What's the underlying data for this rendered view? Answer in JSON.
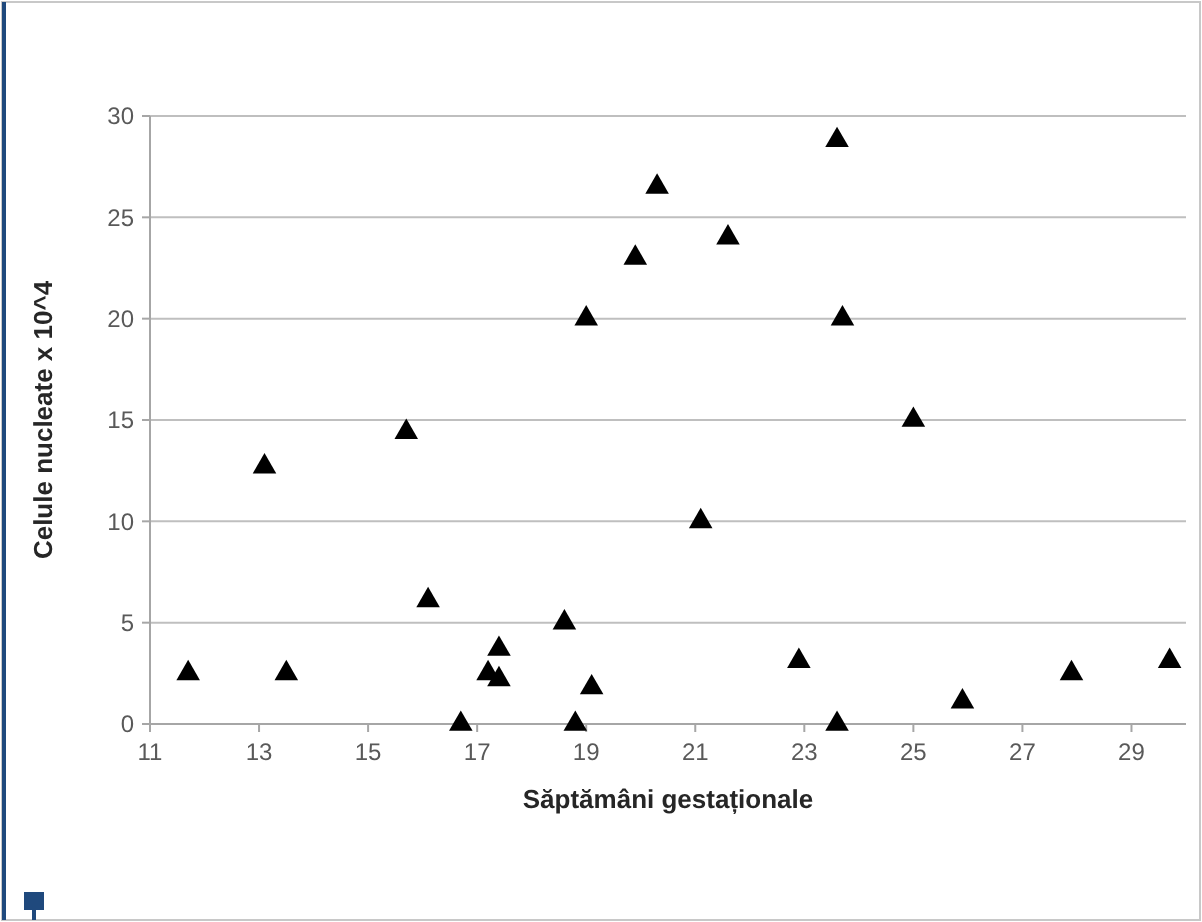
{
  "chart_data": {
    "type": "scatter",
    "xlabel": "Săptămâni gestaționale",
    "ylabel": "Celule nucleate x 10^4",
    "x": [
      11.7,
      13.1,
      13.5,
      15.7,
      16.1,
      16.7,
      17.2,
      17.4,
      17.4,
      18.6,
      18.8,
      19.0,
      19.1,
      19.9,
      20.3,
      21.1,
      21.6,
      22.9,
      23.6,
      23.6,
      23.7,
      25.0,
      25.9,
      27.9,
      29.7
    ],
    "values": [
      2.5,
      12.7,
      2.5,
      14.4,
      6.1,
      0,
      2.5,
      2.2,
      3.7,
      5,
      0,
      20,
      1.8,
      23,
      26.5,
      10,
      24,
      3.1,
      28.8,
      0,
      20,
      15,
      1.1,
      2.5,
      3.1
    ],
    "color": "#000000",
    "marker": "triangle",
    "grid": "y",
    "xlim": [
      11,
      30
    ],
    "xticks": [
      11,
      13,
      15,
      17,
      19,
      21,
      23,
      25,
      27,
      29
    ],
    "ylim": [
      0,
      30
    ],
    "yticks": [
      0,
      5,
      10,
      15,
      20,
      25,
      30
    ]
  }
}
